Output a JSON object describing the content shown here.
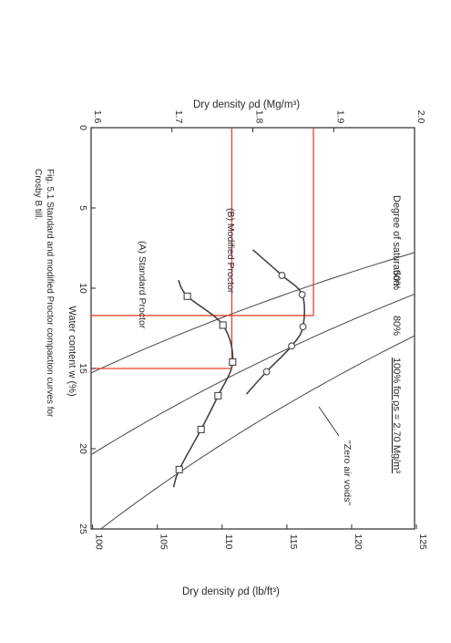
{
  "chart_data": {
    "type": "line",
    "x_axis": {
      "label": "Water content w (%)",
      "range": [
        0,
        25
      ],
      "ticks": [
        0,
        5,
        10,
        15,
        20,
        25
      ]
    },
    "y_axis_left": {
      "label": "Dry density ρd (Mg/m³)",
      "range": [
        1.6,
        2.0
      ],
      "ticks": [
        "1.6",
        "1.7",
        "1.8",
        "1.9",
        "2.0"
      ]
    },
    "y_axis_right": {
      "label": "Dry density ρd (lb/ft³)",
      "ticks": [
        100,
        105,
        110,
        115,
        120,
        125
      ]
    },
    "series": [
      {
        "name": "(A) Standard Proctor",
        "marker": "square",
        "points": [
          [
            10.5,
            1.719
          ],
          [
            12.3,
            1.763
          ],
          [
            14.6,
            1.775
          ],
          [
            16.7,
            1.757
          ],
          [
            18.8,
            1.736
          ],
          [
            21.3,
            1.709
          ]
        ]
      },
      {
        "name": "(B) Modified Proctor",
        "marker": "circle",
        "points": [
          [
            9.2,
            1.836
          ],
          [
            10.4,
            1.861
          ],
          [
            12.4,
            1.862
          ],
          [
            13.6,
            1.848
          ],
          [
            15.2,
            1.817
          ]
        ]
      }
    ],
    "saturation_lines": {
      "heading": "Degree of saturation:",
      "labels": [
        "60%",
        "80%",
        "100% for ρs = 2.70 Mg/m³"
      ],
      "annotation": "\"Zero air voids\""
    },
    "optimum_markers": [
      {
        "w": 11.7,
        "rho": 1.875
      },
      {
        "w": 15.0,
        "rho": 1.774
      }
    ],
    "caption": "Fig. 5.1 Standard and modified Proctor compaction curves for Crosby B till."
  },
  "colors": {
    "axis": "#2a2a2a",
    "curve": "#444444",
    "saturation": "#555555",
    "optimum": "#e8412e",
    "background": "#ffffff"
  }
}
